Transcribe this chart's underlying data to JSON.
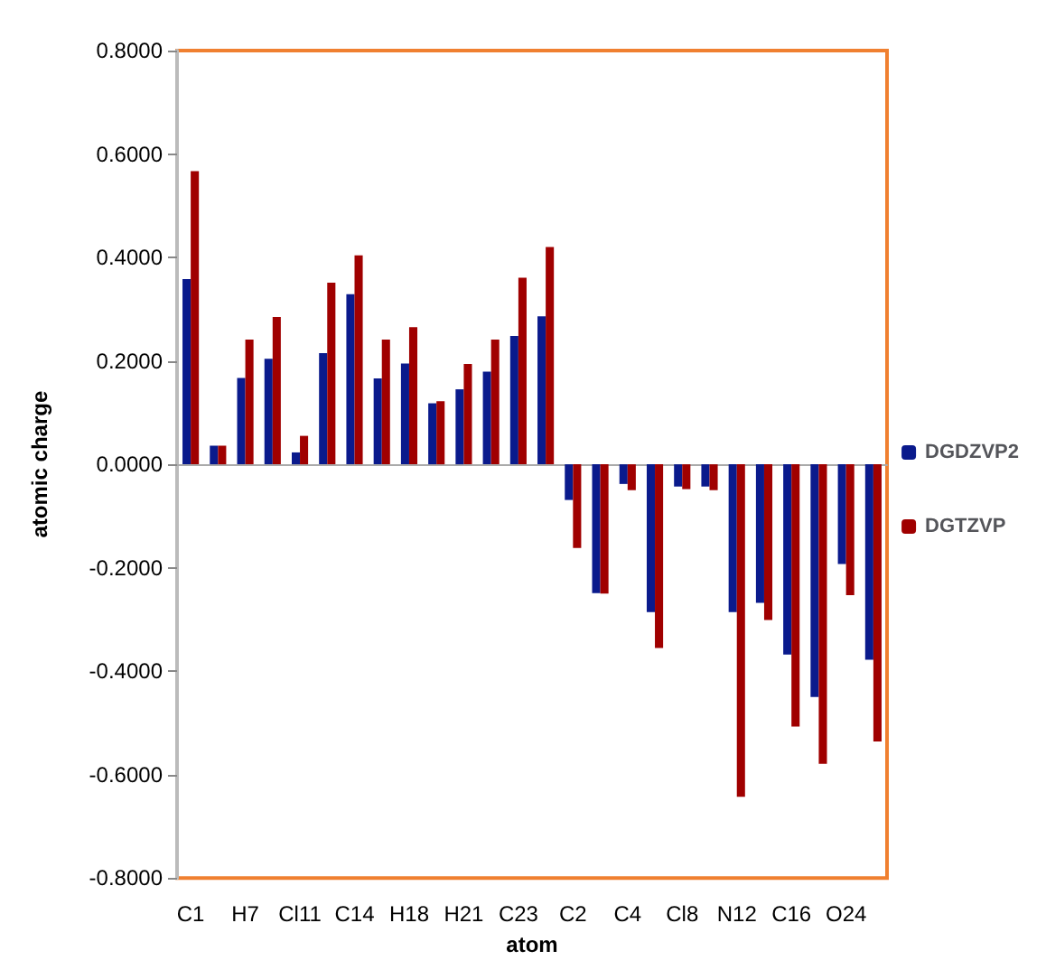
{
  "chart_data": {
    "type": "bar",
    "xlabel": "atom",
    "ylabel": "atomic charge",
    "categories": [
      "C1",
      null,
      "H7",
      null,
      "Cl11",
      null,
      "C14",
      null,
      "H18",
      null,
      "H21",
      null,
      "C23",
      null,
      "C2",
      null,
      "C4",
      null,
      "Cl8",
      null,
      "N12",
      null,
      "C16",
      null,
      "O24",
      null
    ],
    "series": [
      {
        "name": "DGDZVP2",
        "color": "#0a1a8c",
        "values": [
          0.358,
          0.036,
          0.167,
          0.204,
          0.023,
          0.215,
          0.329,
          0.166,
          0.195,
          0.118,
          0.145,
          0.179,
          0.248,
          0.286,
          -0.069,
          -0.249,
          -0.038,
          -0.286,
          -0.043,
          -0.043,
          -0.286,
          -0.268,
          -0.368,
          -0.45,
          -0.193,
          -0.378
        ]
      },
      {
        "name": "DGTZVP",
        "color": "#a00000",
        "values": [
          0.567,
          0.036,
          0.241,
          0.285,
          0.055,
          0.351,
          0.404,
          0.241,
          0.265,
          0.122,
          0.194,
          0.241,
          0.361,
          0.42,
          -0.162,
          -0.25,
          -0.05,
          -0.355,
          -0.048,
          -0.05,
          -0.643,
          -0.301,
          -0.507,
          -0.579,
          -0.253,
          -0.536
        ]
      }
    ],
    "ylim": [
      -0.8,
      0.8
    ],
    "yticks": [
      {
        "value": -0.8,
        "label": "-0.8000"
      },
      {
        "value": -0.6,
        "label": "-0.6000"
      },
      {
        "value": -0.4,
        "label": "-0.4000"
      },
      {
        "value": -0.2,
        "label": "-0.2000"
      },
      {
        "value": 0,
        "label": "0.0000"
      },
      {
        "value": 0.2,
        "label": "0.2000"
      },
      {
        "value": 0.4,
        "label": "0.4000"
      },
      {
        "value": 0.6,
        "label": "0.6000"
      },
      {
        "value": 0.8,
        "label": "0.8000"
      }
    ],
    "legend": "right"
  }
}
